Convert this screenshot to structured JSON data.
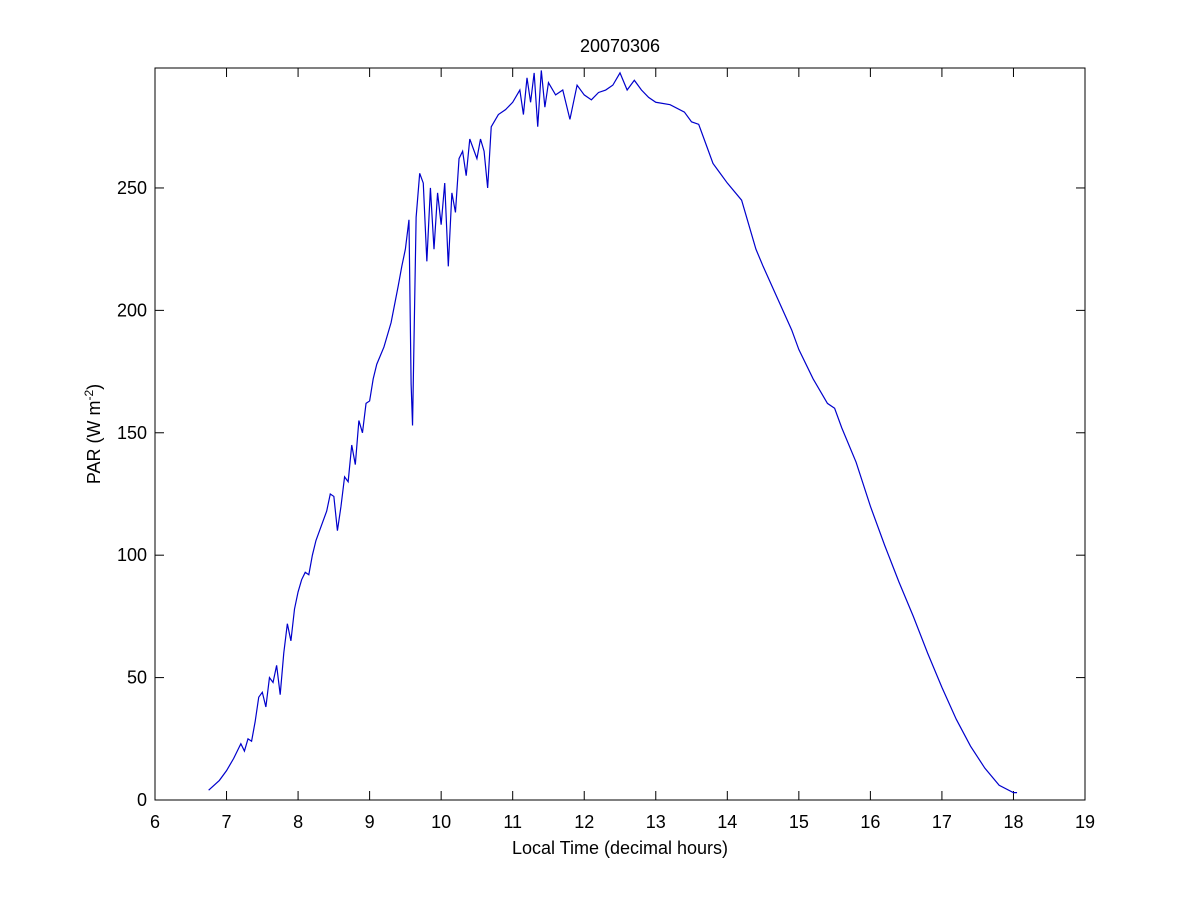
{
  "chart_data": {
    "type": "line",
    "title": "20070306",
    "xlabel": "Local Time (decimal hours)",
    "ylabel": [
      "PAR (W m",
      "-2",
      ")"
    ],
    "xlim": [
      6,
      19
    ],
    "ylim": [
      0,
      299
    ],
    "xticks": [
      6,
      7,
      8,
      9,
      10,
      11,
      12,
      13,
      14,
      15,
      16,
      17,
      18,
      19
    ],
    "yticks": [
      0,
      50,
      100,
      150,
      200,
      250
    ],
    "grid": false,
    "x": [
      6.75,
      6.9,
      7.0,
      7.1,
      7.2,
      7.25,
      7.3,
      7.35,
      7.4,
      7.45,
      7.5,
      7.55,
      7.6,
      7.65,
      7.7,
      7.75,
      7.8,
      7.85,
      7.9,
      7.95,
      8.0,
      8.05,
      8.1,
      8.15,
      8.2,
      8.25,
      8.3,
      8.4,
      8.45,
      8.5,
      8.55,
      8.6,
      8.65,
      8.7,
      8.75,
      8.8,
      8.85,
      8.9,
      8.95,
      9.0,
      9.05,
      9.1,
      9.2,
      9.3,
      9.4,
      9.45,
      9.5,
      9.55,
      9.58,
      9.6,
      9.65,
      9.7,
      9.75,
      9.8,
      9.85,
      9.9,
      9.95,
      10.0,
      10.05,
      10.1,
      10.15,
      10.2,
      10.25,
      10.3,
      10.35,
      10.4,
      10.5,
      10.55,
      10.6,
      10.65,
      10.7,
      10.8,
      10.9,
      11.0,
      11.1,
      11.15,
      11.2,
      11.25,
      11.3,
      11.35,
      11.4,
      11.45,
      11.5,
      11.6,
      11.7,
      11.8,
      11.9,
      12.0,
      12.1,
      12.2,
      12.3,
      12.4,
      12.5,
      12.6,
      12.7,
      12.8,
      12.9,
      13.0,
      13.2,
      13.4,
      13.5,
      13.6,
      13.7,
      13.8,
      13.9,
      14.0,
      14.2,
      14.3,
      14.4,
      14.5,
      14.7,
      14.9,
      15.0,
      15.2,
      15.4,
      15.5,
      15.6,
      15.8,
      16.0,
      16.2,
      16.4,
      16.6,
      16.8,
      17.0,
      17.2,
      17.4,
      17.6,
      17.8,
      18.0,
      18.05
    ],
    "series": [
      {
        "color": "#0000cc",
        "values": [
          4,
          8,
          12,
          17,
          23,
          20,
          25,
          24,
          32,
          42,
          44,
          38,
          50,
          48,
          55,
          43,
          60,
          72,
          65,
          78,
          85,
          90,
          93,
          92,
          100,
          106,
          110,
          118,
          125,
          124,
          110,
          120,
          132,
          130,
          145,
          137,
          155,
          150,
          162,
          163,
          172,
          178,
          185,
          195,
          210,
          218,
          225,
          237,
          170,
          153,
          238,
          256,
          252,
          220,
          250,
          225,
          248,
          235,
          252,
          218,
          248,
          240,
          262,
          265,
          255,
          270,
          262,
          270,
          265,
          250,
          275,
          280,
          282,
          285,
          290,
          280,
          295,
          285,
          297,
          275,
          298,
          283,
          293,
          288,
          290,
          278,
          292,
          288,
          286,
          289,
          290,
          292,
          297,
          290,
          294,
          290,
          287,
          285,
          284,
          281,
          277,
          276,
          268,
          260,
          256,
          252,
          245,
          235,
          225,
          218,
          205,
          192,
          184,
          172,
          162,
          160,
          152,
          138,
          120,
          104,
          89,
          75,
          60,
          46,
          33,
          22,
          13,
          6,
          3,
          3
        ]
      }
    ]
  }
}
